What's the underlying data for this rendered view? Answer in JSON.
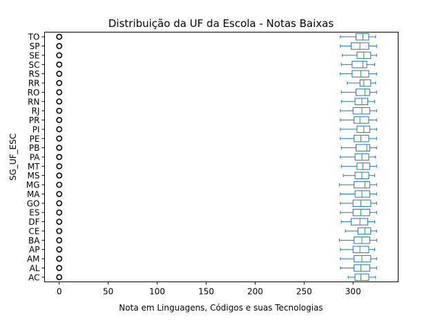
{
  "chart_data": {
    "type": "boxplot",
    "orientation": "horizontal",
    "title": "Distribuição da UF da Escola - Notas Baixas",
    "xlabel": "Nota em Linguagens, Códigos e suas Tecnologias",
    "ylabel": "SG_UF_ESC",
    "xlim": [
      -15,
      346
    ],
    "xticks": [
      0,
      50,
      100,
      150,
      200,
      250,
      300
    ],
    "grid": false,
    "legend": "none",
    "colors": {
      "box": "#1f77b4",
      "median": "#2ca02c",
      "outlier": "#000000"
    },
    "categories": [
      "AC",
      "AL",
      "AM",
      "AP",
      "BA",
      "CE",
      "DF",
      "ES",
      "GO",
      "MA",
      "MG",
      "MS",
      "MT",
      "PA",
      "PB",
      "PE",
      "PI",
      "PR",
      "RJ",
      "RN",
      "RO",
      "RR",
      "RS",
      "SC",
      "SE",
      "SP",
      "TO"
    ],
    "boxes": [
      {
        "whislo": 295,
        "q1": 302,
        "med": 308,
        "q3": 316,
        "whishi": 323,
        "outliers": [
          0
        ]
      },
      {
        "whislo": 287,
        "q1": 301,
        "med": 308,
        "q3": 317,
        "whishi": 324,
        "outliers": [
          0
        ]
      },
      {
        "whislo": 287,
        "q1": 301,
        "med": 309,
        "q3": 318,
        "whishi": 324,
        "outliers": [
          0
        ]
      },
      {
        "whislo": 287,
        "q1": 300,
        "med": 307,
        "q3": 316,
        "whishi": 322,
        "outliers": [
          0
        ]
      },
      {
        "whislo": 286,
        "q1": 301,
        "med": 309,
        "q3": 317,
        "whishi": 324,
        "outliers": [
          0
        ]
      },
      {
        "whislo": 292,
        "q1": 305,
        "med": 312,
        "q3": 318,
        "whishi": 324,
        "outliers": [
          0
        ]
      },
      {
        "whislo": 288,
        "q1": 298,
        "med": 307,
        "q3": 315,
        "whishi": 322,
        "outliers": [
          0
        ]
      },
      {
        "whislo": 287,
        "q1": 300,
        "med": 308,
        "q3": 317,
        "whishi": 324,
        "outliers": [
          0
        ]
      },
      {
        "whislo": 287,
        "q1": 300,
        "med": 308,
        "q3": 318,
        "whishi": 324,
        "outliers": [
          0
        ]
      },
      {
        "whislo": 287,
        "q1": 302,
        "med": 309,
        "q3": 317,
        "whishi": 324,
        "outliers": [
          0
        ]
      },
      {
        "whislo": 286,
        "q1": 301,
        "med": 312,
        "q3": 317,
        "whishi": 324,
        "outliers": [
          0
        ]
      },
      {
        "whislo": 290,
        "q1": 302,
        "med": 309,
        "q3": 316,
        "whishi": 322,
        "outliers": [
          0
        ]
      },
      {
        "whislo": 288,
        "q1": 304,
        "med": 310,
        "q3": 317,
        "whishi": 324,
        "outliers": [
          0
        ]
      },
      {
        "whislo": 287,
        "q1": 302,
        "med": 309,
        "q3": 316,
        "whishi": 323,
        "outliers": [
          0
        ]
      },
      {
        "whislo": 288,
        "q1": 303,
        "med": 314,
        "q3": 317,
        "whishi": 324,
        "outliers": [
          0
        ]
      },
      {
        "whislo": 287,
        "q1": 301,
        "med": 308,
        "q3": 316,
        "whishi": 324,
        "outliers": [
          0
        ]
      },
      {
        "whislo": 287,
        "q1": 304,
        "med": 311,
        "q3": 317,
        "whishi": 324,
        "outliers": [
          0
        ]
      },
      {
        "whislo": 287,
        "q1": 301,
        "med": 307,
        "q3": 316,
        "whishi": 324,
        "outliers": [
          0
        ]
      },
      {
        "whislo": 287,
        "q1": 300,
        "med": 309,
        "q3": 317,
        "whishi": 324,
        "outliers": [
          0
        ]
      },
      {
        "whislo": 288,
        "q1": 302,
        "med": 309,
        "q3": 315,
        "whishi": 322,
        "outliers": [
          0
        ]
      },
      {
        "whislo": 288,
        "q1": 303,
        "med": 312,
        "q3": 317,
        "whishi": 324,
        "outliers": [
          0
        ]
      },
      {
        "whislo": 294,
        "q1": 307,
        "med": 311,
        "q3": 318,
        "whishi": 323,
        "outliers": [
          0
        ]
      },
      {
        "whislo": 287,
        "q1": 299,
        "med": 308,
        "q3": 316,
        "whishi": 324,
        "outliers": [
          0
        ]
      },
      {
        "whislo": 288,
        "q1": 299,
        "med": 310,
        "q3": 314,
        "whishi": 322,
        "outliers": [
          0
        ]
      },
      {
        "whislo": 289,
        "q1": 304,
        "med": 311,
        "q3": 318,
        "whishi": 324,
        "outliers": [
          0
        ]
      },
      {
        "whislo": 287,
        "q1": 298,
        "med": 307,
        "q3": 316,
        "whishi": 324,
        "outliers": [
          0
        ]
      },
      {
        "whislo": 287,
        "q1": 303,
        "med": 310,
        "q3": 316,
        "whishi": 323,
        "outliers": [
          0
        ]
      }
    ]
  }
}
